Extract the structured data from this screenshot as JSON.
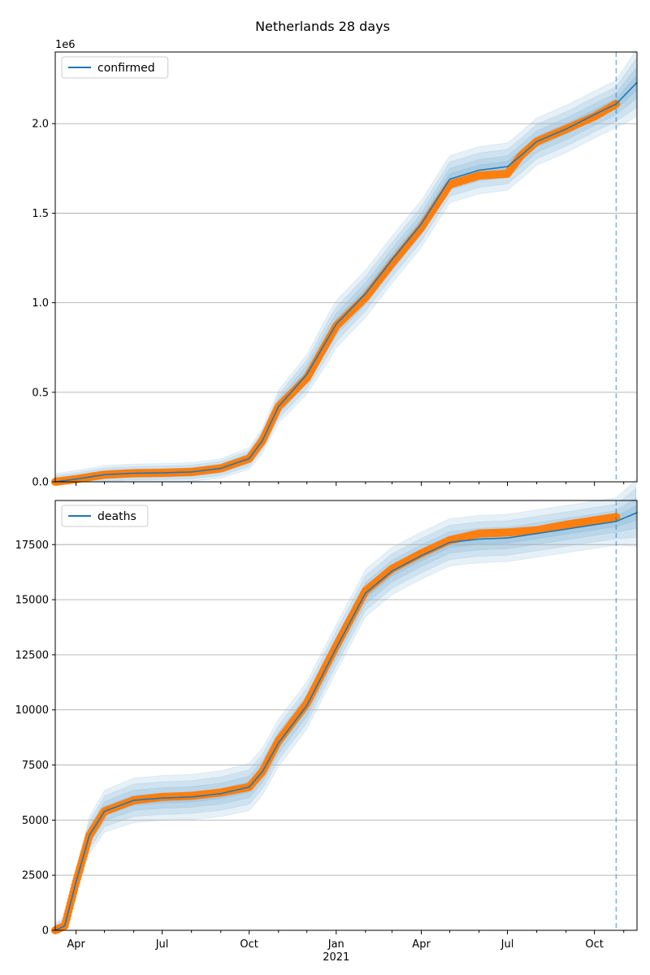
{
  "figure": {
    "suptitle": "Netherlands 28 days"
  },
  "colors": {
    "model": "#1f77b4",
    "observed": "#ff7f0e",
    "band": "#1f77b4",
    "grid": "#b0b0b0"
  },
  "chart_data": [
    {
      "type": "line",
      "name": "confirmed",
      "legend": [
        "confirmed"
      ],
      "legend_position": "top-left",
      "grid": "horizontal",
      "y_offset_label": "1e6",
      "y_scale": 1000000,
      "ylim": [
        0,
        2400000
      ],
      "yticks": [
        0,
        500000,
        1000000,
        1500000,
        2000000
      ],
      "ytick_labels": [
        "0.0",
        "0.5",
        "1.0",
        "1.5",
        "2.0"
      ],
      "xlim": [
        "2020-03-10",
        "2021-11-15"
      ],
      "forecast_start": "2021-10-24",
      "series": [
        {
          "role": "model",
          "name": "confirmed",
          "x": [
            "2020-03-10",
            "2020-04-01",
            "2020-05-01",
            "2020-06-01",
            "2020-07-01",
            "2020-08-01",
            "2020-09-01",
            "2020-10-01",
            "2020-10-15",
            "2020-11-01",
            "2020-12-01",
            "2021-01-01",
            "2021-02-01",
            "2021-03-01",
            "2021-04-01",
            "2021-05-01",
            "2021-06-01",
            "2021-07-01",
            "2021-07-15",
            "2021-08-01",
            "2021-09-01",
            "2021-10-01",
            "2021-10-24",
            "2021-11-15"
          ],
          "values": [
            0,
            15000,
            40000,
            48000,
            50000,
            55000,
            75000,
            130000,
            230000,
            420000,
            600000,
            880000,
            1050000,
            1240000,
            1440000,
            1690000,
            1740000,
            1760000,
            1820000,
            1900000,
            1970000,
            2050000,
            2110000,
            2230000
          ]
        },
        {
          "role": "observed",
          "x": [
            "2020-03-10",
            "2020-04-01",
            "2020-05-01",
            "2020-06-01",
            "2020-07-01",
            "2020-08-01",
            "2020-09-01",
            "2020-10-01",
            "2020-10-15",
            "2020-11-01",
            "2020-12-01",
            "2021-01-01",
            "2021-02-01",
            "2021-03-01",
            "2021-04-01",
            "2021-05-01",
            "2021-06-01",
            "2021-07-01",
            "2021-07-15",
            "2021-08-01",
            "2021-09-01",
            "2021-10-01",
            "2021-10-24"
          ],
          "values": [
            0,
            15000,
            40000,
            48000,
            50000,
            55000,
            75000,
            130000,
            230000,
            420000,
            580000,
            870000,
            1030000,
            1220000,
            1420000,
            1660000,
            1710000,
            1720000,
            1820000,
            1900000,
            1970000,
            2040000,
            2110000
          ]
        }
      ]
    },
    {
      "type": "line",
      "name": "deaths",
      "legend": [
        "deaths"
      ],
      "legend_position": "top-left",
      "grid": "horizontal",
      "ylim": [
        0,
        19500
      ],
      "yticks": [
        0,
        2500,
        5000,
        7500,
        10000,
        12500,
        15000,
        17500
      ],
      "ytick_labels": [
        "0",
        "2500",
        "5000",
        "7500",
        "10000",
        "12500",
        "15000",
        "17500"
      ],
      "xlim": [
        "2020-03-10",
        "2021-11-15"
      ],
      "xticks": [
        "2020-04-01",
        "2020-07-01",
        "2020-10-01",
        "2021-01-01",
        "2021-04-01",
        "2021-07-01",
        "2021-10-01"
      ],
      "xtick_labels": [
        "Apr",
        "Jul",
        "Oct",
        "Jan",
        "Apr",
        "Jul",
        "Oct"
      ],
      "x_year_label": "2021",
      "forecast_start": "2021-10-24",
      "series": [
        {
          "role": "model",
          "name": "deaths",
          "x": [
            "2020-03-10",
            "2020-03-20",
            "2020-04-01",
            "2020-04-15",
            "2020-05-01",
            "2020-06-01",
            "2020-07-01",
            "2020-08-01",
            "2020-09-01",
            "2020-10-01",
            "2020-10-15",
            "2020-11-01",
            "2020-12-01",
            "2021-01-01",
            "2021-02-01",
            "2021-03-01",
            "2021-04-01",
            "2021-05-01",
            "2021-06-01",
            "2021-07-01",
            "2021-08-01",
            "2021-09-01",
            "2021-10-01",
            "2021-10-24",
            "2021-11-15"
          ],
          "values": [
            0,
            200,
            2200,
            4300,
            5400,
            5900,
            6000,
            6050,
            6200,
            6500,
            7200,
            8500,
            10200,
            12800,
            15300,
            16300,
            17000,
            17600,
            17750,
            17800,
            18000,
            18200,
            18400,
            18550,
            18950
          ]
        },
        {
          "role": "observed",
          "x": [
            "2020-03-10",
            "2020-03-20",
            "2020-04-01",
            "2020-04-15",
            "2020-05-01",
            "2020-06-01",
            "2020-07-01",
            "2020-08-01",
            "2020-09-01",
            "2020-10-01",
            "2020-10-15",
            "2020-11-01",
            "2020-12-01",
            "2021-01-01",
            "2021-02-01",
            "2021-03-01",
            "2021-04-01",
            "2021-05-01",
            "2021-06-01",
            "2021-07-01",
            "2021-08-01",
            "2021-09-01",
            "2021-10-01",
            "2021-10-24"
          ],
          "values": [
            0,
            200,
            2200,
            4300,
            5400,
            5900,
            6050,
            6100,
            6250,
            6500,
            7200,
            8600,
            10300,
            12900,
            15400,
            16400,
            17100,
            17700,
            18000,
            18050,
            18150,
            18400,
            18600,
            18750
          ]
        }
      ]
    }
  ]
}
